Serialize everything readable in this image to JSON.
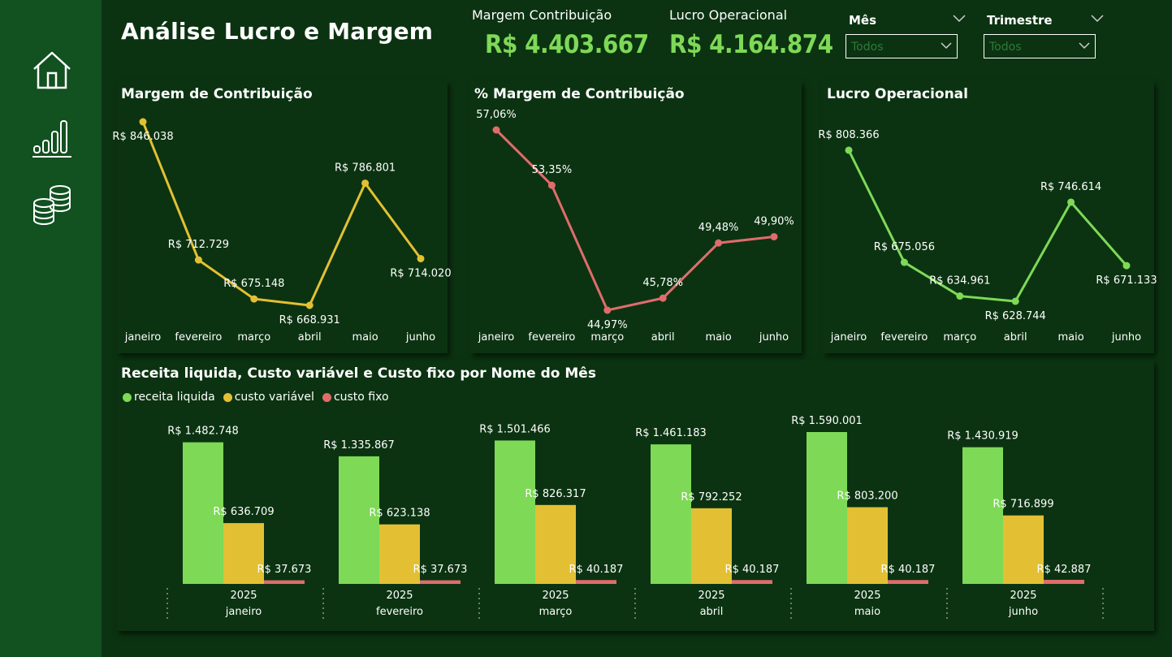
{
  "page": {
    "title": "Análise Lucro e Margem"
  },
  "colors": {
    "background": "#0b3311",
    "sidebar": "#125120",
    "green": "#7ed957",
    "yellow": "#e3c033",
    "red": "#e06c6c"
  },
  "nav": {
    "items": [
      {
        "icon": "home-icon"
      },
      {
        "icon": "bar-chart-icon"
      },
      {
        "icon": "coins-icon"
      }
    ]
  },
  "kpis": [
    {
      "label": "Margem Contribuição",
      "value": "R$ 4.403.667"
    },
    {
      "label": "Lucro Operacional",
      "value": "R$ 4.164.874"
    }
  ],
  "slicers": [
    {
      "label": "Mês",
      "value": "Todos"
    },
    {
      "label": "Trimestre",
      "value": "Todos"
    }
  ],
  "chart_data": [
    {
      "type": "line",
      "title": "Margem de Contribuição",
      "categories": [
        "janeiro",
        "fevereiro",
        "março",
        "abril",
        "maio",
        "junho"
      ],
      "values": [
        846038,
        712729,
        675148,
        668931,
        786801,
        714020
      ],
      "labels": [
        "R$ 846.038",
        "R$ 712.729",
        "R$ 675.148",
        "R$ 668.931",
        "R$ 786.801",
        "R$ 714.020"
      ],
      "color": "#e3c033",
      "grid": false
    },
    {
      "type": "line",
      "title": "% Margem de Contribuição",
      "categories": [
        "janeiro",
        "fevereiro",
        "março",
        "abril",
        "maio",
        "junho"
      ],
      "values": [
        57.06,
        53.35,
        44.97,
        45.78,
        49.48,
        49.9
      ],
      "labels": [
        "57,06%",
        "53,35%",
        "44,97%",
        "45,78%",
        "49,48%",
        "49,90%"
      ],
      "color": "#e06c6c",
      "grid": false
    },
    {
      "type": "line",
      "title": "Lucro Operacional",
      "categories": [
        "janeiro",
        "fevereiro",
        "março",
        "abril",
        "maio",
        "junho"
      ],
      "values": [
        808366,
        675056,
        634961,
        628744,
        746614,
        671133
      ],
      "labels": [
        "R$ 808.366",
        "R$ 675.056",
        "R$ 634.961",
        "R$ 628.744",
        "R$ 746.614",
        "R$ 671.133"
      ],
      "color": "#7ed957",
      "grid": false
    },
    {
      "type": "bar",
      "title": "Receita liquida, Custo variável e Custo fixo por Nome do Mês",
      "legend_position": "top-left",
      "categories": [
        "janeiro",
        "fevereiro",
        "março",
        "abril",
        "maio",
        "junho"
      ],
      "year": "2025",
      "grid": false,
      "series": [
        {
          "name": "receita liquida",
          "color": "#7ed957",
          "values": [
            1482748,
            1335867,
            1501466,
            1461183,
            1590001,
            1430919
          ],
          "labels": [
            "R$ 1.482.748",
            "R$ 1.335.867",
            "R$ 1.501.466",
            "R$ 1.461.183",
            "R$ 1.590.001",
            "R$ 1.430.919"
          ]
        },
        {
          "name": "custo variável",
          "color": "#e3c033",
          "values": [
            636709,
            623138,
            826317,
            792252,
            803200,
            716899
          ],
          "labels": [
            "R$ 636.709",
            "R$ 623.138",
            "R$ 826.317",
            "R$ 792.252",
            "R$ 803.200",
            "R$ 716.899"
          ]
        },
        {
          "name": "custo fixo",
          "color": "#e06c6c",
          "values": [
            37673,
            37673,
            40187,
            40187,
            40187,
            42887
          ],
          "labels": [
            "R$ 37.673",
            "R$ 37.673",
            "R$ 40.187",
            "R$ 40.187",
            "R$ 40.187",
            "R$ 42.887"
          ]
        }
      ]
    }
  ]
}
